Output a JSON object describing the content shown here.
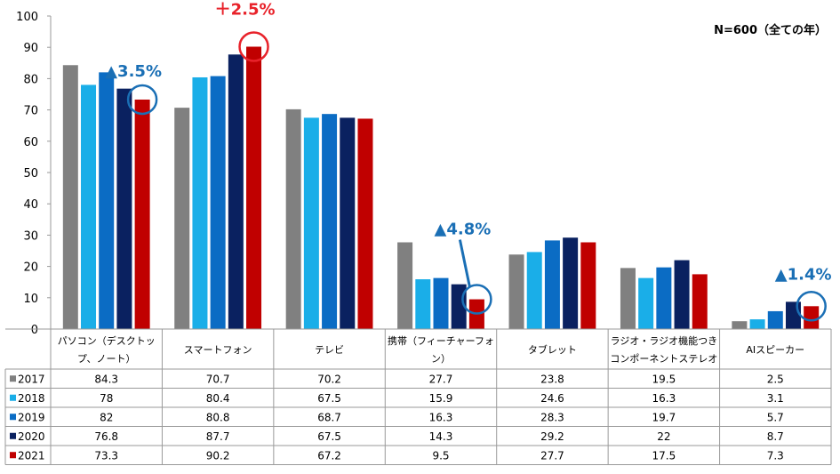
{
  "chart_data": {
    "type": "bar",
    "title": "",
    "xlabel": "",
    "ylabel": "",
    "ylim": [
      0,
      100
    ],
    "yticks": [
      0,
      10,
      20,
      30,
      40,
      50,
      60,
      70,
      80,
      90,
      100
    ],
    "grid": false,
    "legend": "data-table",
    "categories": [
      [
        "パソコン（デスクトッ",
        "プ、ノート）"
      ],
      [
        "スマートフォン"
      ],
      [
        "テレビ"
      ],
      [
        "携帯（フィーチャーフォ",
        "ン）"
      ],
      [
        "タブレット"
      ],
      [
        "ラジオ・ラジオ機能つき",
        "コンポーネントステレオ"
      ],
      [
        "AIスピーカー"
      ]
    ],
    "series": [
      {
        "name": "2017",
        "color": "#808080",
        "values": [
          84.3,
          70.7,
          70.2,
          27.7,
          23.8,
          19.5,
          2.5
        ]
      },
      {
        "name": "2018",
        "color": "#1aaee8",
        "values": [
          78,
          80.4,
          67.5,
          15.9,
          24.6,
          16.3,
          3.1
        ]
      },
      {
        "name": "2019",
        "color": "#0b6cc4",
        "values": [
          82,
          80.8,
          68.7,
          16.3,
          28.3,
          19.7,
          5.7
        ]
      },
      {
        "name": "2020",
        "color": "#0a2160",
        "values": [
          76.8,
          87.7,
          67.5,
          14.3,
          29.2,
          22,
          8.7
        ]
      },
      {
        "name": "2021",
        "color": "#c00000",
        "values": [
          73.3,
          90.2,
          67.2,
          9.5,
          27.7,
          17.5,
          7.3
        ]
      }
    ],
    "note": "N=600（全ての年）",
    "annotations": [
      {
        "text": "▲3.5%",
        "category": 0,
        "color": "#1a6fb5"
      },
      {
        "text": "＋2.5%",
        "category": 1,
        "color": "#e8222a"
      },
      {
        "text": "▲4.8%",
        "category": 3,
        "color": "#1a6fb5"
      },
      {
        "text": "▲1.4%",
        "category": 6,
        "color": "#1a6fb5"
      }
    ]
  }
}
